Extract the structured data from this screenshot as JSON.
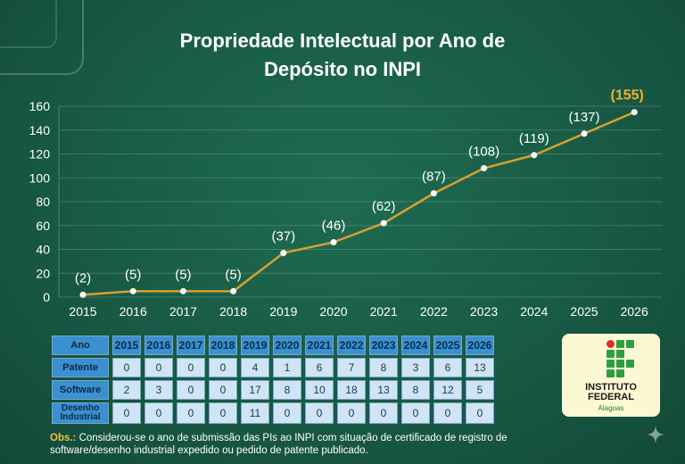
{
  "chart_data": {
    "type": "line",
    "title": "Propriedade Intelectual por Ano de Depósito no INPI",
    "title_lines": [
      "Propriedade Intelectual por Ano de",
      "Depósito no INPI"
    ],
    "categories": [
      "2015",
      "2016",
      "2017",
      "2018",
      "2019",
      "2020",
      "2021",
      "2022",
      "2023",
      "2024",
      "2025",
      "2026"
    ],
    "series": [
      {
        "values": [
          2,
          5,
          5,
          5,
          37,
          46,
          62,
          87,
          108,
          119,
          137,
          155
        ]
      }
    ],
    "data_labels": [
      "(2)",
      "(5)",
      "(5)",
      "(5)",
      "(37)",
      "(46)",
      "(62)",
      "(87)",
      "(108)",
      "(119)",
      "(137)",
      "(155)"
    ],
    "ylim": [
      0,
      160
    ],
    "yticks": [
      0,
      20,
      40,
      60,
      80,
      100,
      120,
      140,
      160
    ],
    "grid": true,
    "line_color": "#d9a030",
    "highlight_label_color": "#f0b030"
  },
  "table": {
    "header_label": "Ano",
    "years": [
      "2015",
      "2016",
      "2017",
      "2018",
      "2019",
      "2020",
      "2021",
      "2022",
      "2023",
      "2024",
      "2025",
      "2026"
    ],
    "rows": [
      {
        "label": "Patente",
        "values": [
          "0",
          "0",
          "0",
          "0",
          "4",
          "1",
          "6",
          "7",
          "8",
          "3",
          "6",
          "13"
        ]
      },
      {
        "label": "Software",
        "values": [
          "2",
          "3",
          "0",
          "0",
          "17",
          "8",
          "10",
          "18",
          "13",
          "8",
          "12",
          "5"
        ]
      },
      {
        "label": "Desenho Industrial",
        "values": [
          "0",
          "0",
          "0",
          "0",
          "11",
          "0",
          "0",
          "0",
          "0",
          "0",
          "0",
          "0"
        ]
      }
    ]
  },
  "note": {
    "prefix": "Obs.:",
    "text": " Considerou-se o ano de submissão das PIs ao INPI com situação de certificado de registro de software/desenho industrial expedido ou pedido de patente publicado."
  },
  "logo": {
    "line1": "INSTITUTO",
    "line2": "FEDERAL",
    "line3": "Alagoas",
    "icon": "if-logo-grid"
  },
  "colors": {
    "background": "#185a45",
    "table_header": "#3a90d0",
    "table_cell": "#cfe4f4",
    "note_prefix": "#f0c040"
  }
}
